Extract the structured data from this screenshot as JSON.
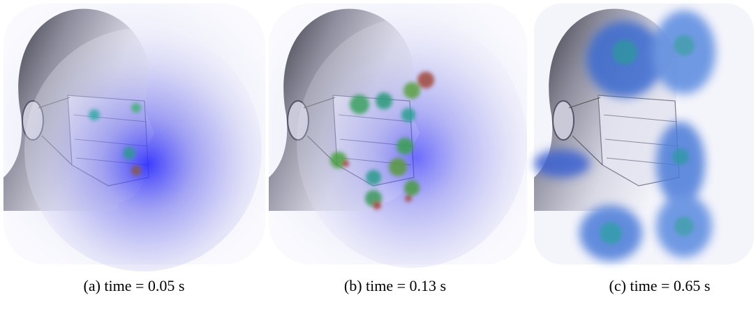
{
  "captions": [
    "(a) time = 0.05 s",
    "(b) time = 0.13 s",
    "(c) time = 0.65 s"
  ]
}
